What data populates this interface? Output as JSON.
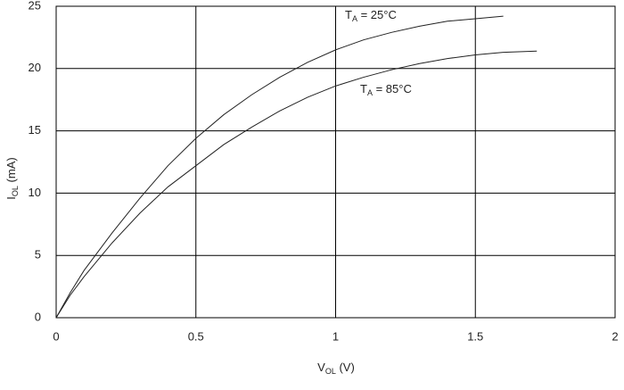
{
  "chart_data": {
    "type": "line",
    "xlabel": {
      "main": "V",
      "sub": "OL",
      "rest": " (V)"
    },
    "ylabel": {
      "main": "I",
      "sub": "OL",
      "rest": " (mA)"
    },
    "xlim": [
      0,
      2
    ],
    "xticks": [
      0,
      0.5,
      1,
      1.5,
      2
    ],
    "ylim": [
      0,
      25
    ],
    "yticks": [
      0,
      5,
      10,
      15,
      20,
      25
    ],
    "grid": true,
    "x": [
      0,
      0.05,
      0.1,
      0.2,
      0.3,
      0.4,
      0.5,
      0.6,
      0.7,
      0.8,
      0.9,
      1.0,
      1.1,
      1.2,
      1.3,
      1.4,
      1.5,
      1.6,
      1.72
    ],
    "series": [
      {
        "name": {
          "main": "T",
          "sub": "A",
          "rest": " = 25°C"
        },
        "color": "#222222",
        "values": [
          0,
          2.0,
          3.8,
          6.8,
          9.6,
          12.2,
          14.4,
          16.3,
          17.9,
          19.3,
          20.5,
          21.5,
          22.3,
          22.9,
          23.4,
          23.8,
          24.0,
          24.2,
          null
        ]
      },
      {
        "name": {
          "main": "T",
          "sub": "A",
          "rest": " = 85°C"
        },
        "color": "#222222",
        "values": [
          0,
          1.8,
          3.3,
          6.0,
          8.4,
          10.5,
          12.2,
          13.9,
          15.3,
          16.6,
          17.7,
          18.6,
          19.3,
          19.9,
          20.4,
          20.8,
          21.1,
          21.3,
          21.4
        ]
      }
    ]
  }
}
